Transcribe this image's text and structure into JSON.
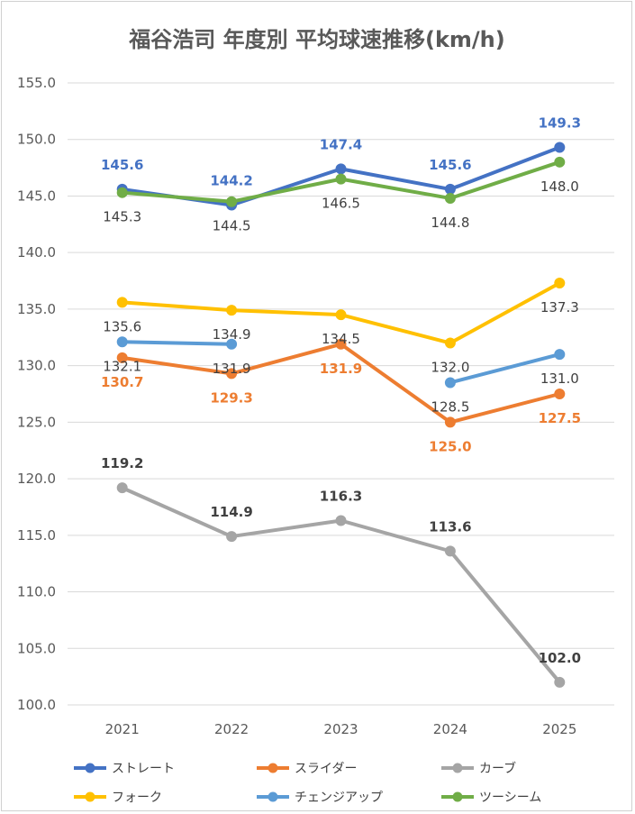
{
  "chart_data": {
    "type": "line",
    "title": "福谷浩司 年度別 平均球速推移(km/h)",
    "xlabel": "",
    "ylabel": "",
    "categories": [
      "2021",
      "2022",
      "2023",
      "2024",
      "2025"
    ],
    "ylim": [
      100.0,
      155.0
    ],
    "ytick_step": 5,
    "yticks": [
      "100.0",
      "105.0",
      "110.0",
      "115.0",
      "120.0",
      "125.0",
      "130.0",
      "135.0",
      "140.0",
      "145.0",
      "150.0",
      "155.0"
    ],
    "grid": true,
    "legend_position": "bottom",
    "series": [
      {
        "name": "ストレート",
        "color": "#4472C4",
        "values": [
          145.6,
          144.2,
          147.4,
          145.6,
          149.3
        ],
        "labels": [
          "145.6",
          "144.2",
          "147.4",
          "145.6",
          "149.3"
        ],
        "label_color": "#4472C4",
        "label_bold": true,
        "label_pos": "above"
      },
      {
        "name": "スライダー",
        "color": "#ED7D31",
        "values": [
          130.7,
          129.3,
          131.9,
          125.0,
          127.5
        ],
        "labels": [
          "130.7",
          "129.3",
          "131.9",
          "125.0",
          "127.5"
        ],
        "label_color": "#ED7D31",
        "label_bold": true,
        "label_pos": "below"
      },
      {
        "name": "カーブ",
        "color": "#A5A5A5",
        "values": [
          119.2,
          114.9,
          116.3,
          113.6,
          102.0
        ],
        "labels": [
          "119.2",
          "114.9",
          "116.3",
          "113.6",
          "102.0"
        ],
        "label_color": "#404040",
        "label_bold": true,
        "label_pos": "above"
      },
      {
        "name": "フォーク",
        "color": "#FFC000",
        "values": [
          135.6,
          134.9,
          134.5,
          132.0,
          137.3
        ],
        "labels": [
          "135.6",
          "134.9",
          "134.5",
          "132.0",
          "137.3"
        ],
        "label_color": "#404040",
        "label_bold": false,
        "label_pos": "below"
      },
      {
        "name": "チェンジアップ",
        "color": "#5B9BD5",
        "values": [
          132.1,
          131.9,
          null,
          128.5,
          131.0
        ],
        "labels": [
          "132.1",
          "131.9",
          "",
          "128.5",
          "131.0"
        ],
        "label_color": "#404040",
        "label_bold": false,
        "label_pos": "below"
      },
      {
        "name": "ツーシーム",
        "color": "#70AD47",
        "values": [
          145.3,
          144.5,
          146.5,
          144.8,
          148.0
        ],
        "labels": [
          "145.3",
          "144.5",
          "146.5",
          "144.8",
          "148.0"
        ],
        "label_color": "#404040",
        "label_bold": false,
        "label_pos": "below"
      }
    ]
  }
}
